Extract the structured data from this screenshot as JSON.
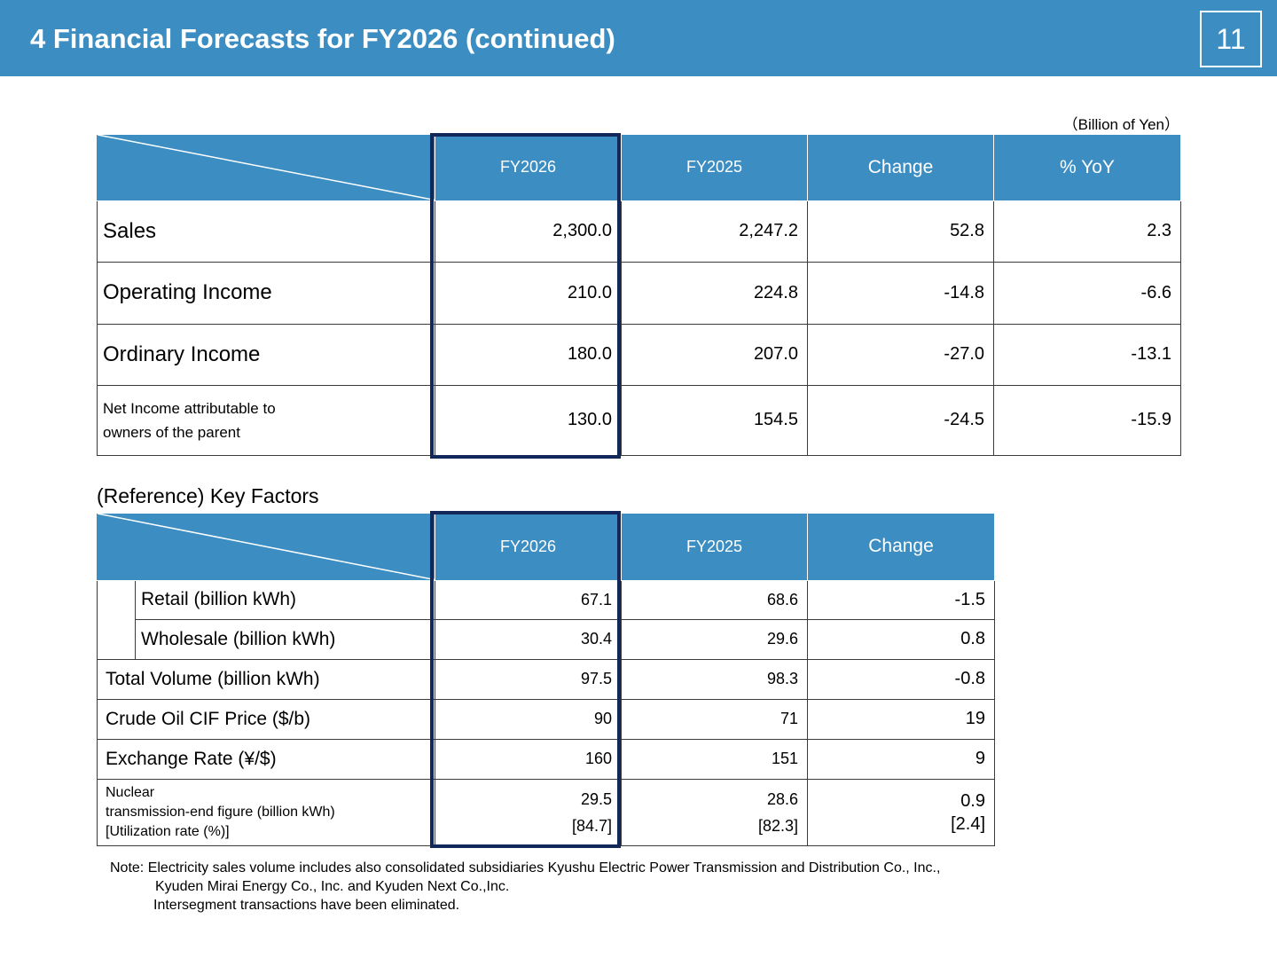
{
  "header": {
    "title": "4  Financial Forecasts for FY2026 (continued)",
    "page_number": "11"
  },
  "unit_note": "（Billion of Yen）",
  "main_table": {
    "columns": [
      "FY2026",
      "FY2025",
      "Change",
      "% YoY"
    ],
    "rows": [
      {
        "label": "Sales",
        "values": [
          "2,300.0",
          "2,247.2",
          "52.8",
          "2.3"
        ]
      },
      {
        "label": "Operating Income",
        "values": [
          "210.0",
          "224.8",
          "-14.8",
          "-6.6"
        ]
      },
      {
        "label": "Ordinary Income",
        "values": [
          "180.0",
          "207.0",
          "-27.0",
          "-13.1"
        ]
      },
      {
        "label_line1": "Net Income attributable to",
        "label_line2": "owners of the parent",
        "values": [
          "130.0",
          "154.5",
          "-24.5",
          "-15.9"
        ]
      }
    ]
  },
  "reference": {
    "title": "(Reference) Key Factors",
    "columns": [
      "FY2026",
      "FY2025",
      "Change"
    ],
    "rows": [
      {
        "label": "Retail (billion kWh)",
        "values": [
          "67.1",
          "68.6",
          "-1.5"
        ]
      },
      {
        "label": "Wholesale (billion kWh)",
        "values": [
          "30.4",
          "29.6",
          "0.8"
        ]
      },
      {
        "label": "Total Volume (billion kWh)",
        "values": [
          "97.5",
          "98.3",
          "-0.8"
        ]
      },
      {
        "label": "Crude Oil CIF Price ($/b)",
        "values": [
          "90",
          "71",
          "19"
        ]
      },
      {
        "label": "Exchange Rate (¥/$)",
        "values": [
          "160",
          "151",
          "9"
        ]
      }
    ],
    "nuclear": {
      "label_line1": "Nuclear",
      "label_line2": "transmission-end figure (billion kWh)",
      "label_line3": "[Utilization rate (%)]",
      "values": [
        "29.5",
        "28.6",
        "0.9"
      ],
      "rates": [
        "[84.7]",
        "[82.3]",
        "[2.4]"
      ]
    }
  },
  "note": {
    "line1": "Note: Electricity sales volume includes also consolidated subsidiaries Kyushu Electric Power Transmission and Distribution Co., Inc.,",
    "line2": "Kyuden Mirai Energy Co., Inc. and Kyuden Next Co.,Inc.",
    "line3": "Intersegment transactions have been eliminated."
  },
  "colors": {
    "header_blue": "#3c8dc2",
    "highlight_navy": "#13285a"
  }
}
